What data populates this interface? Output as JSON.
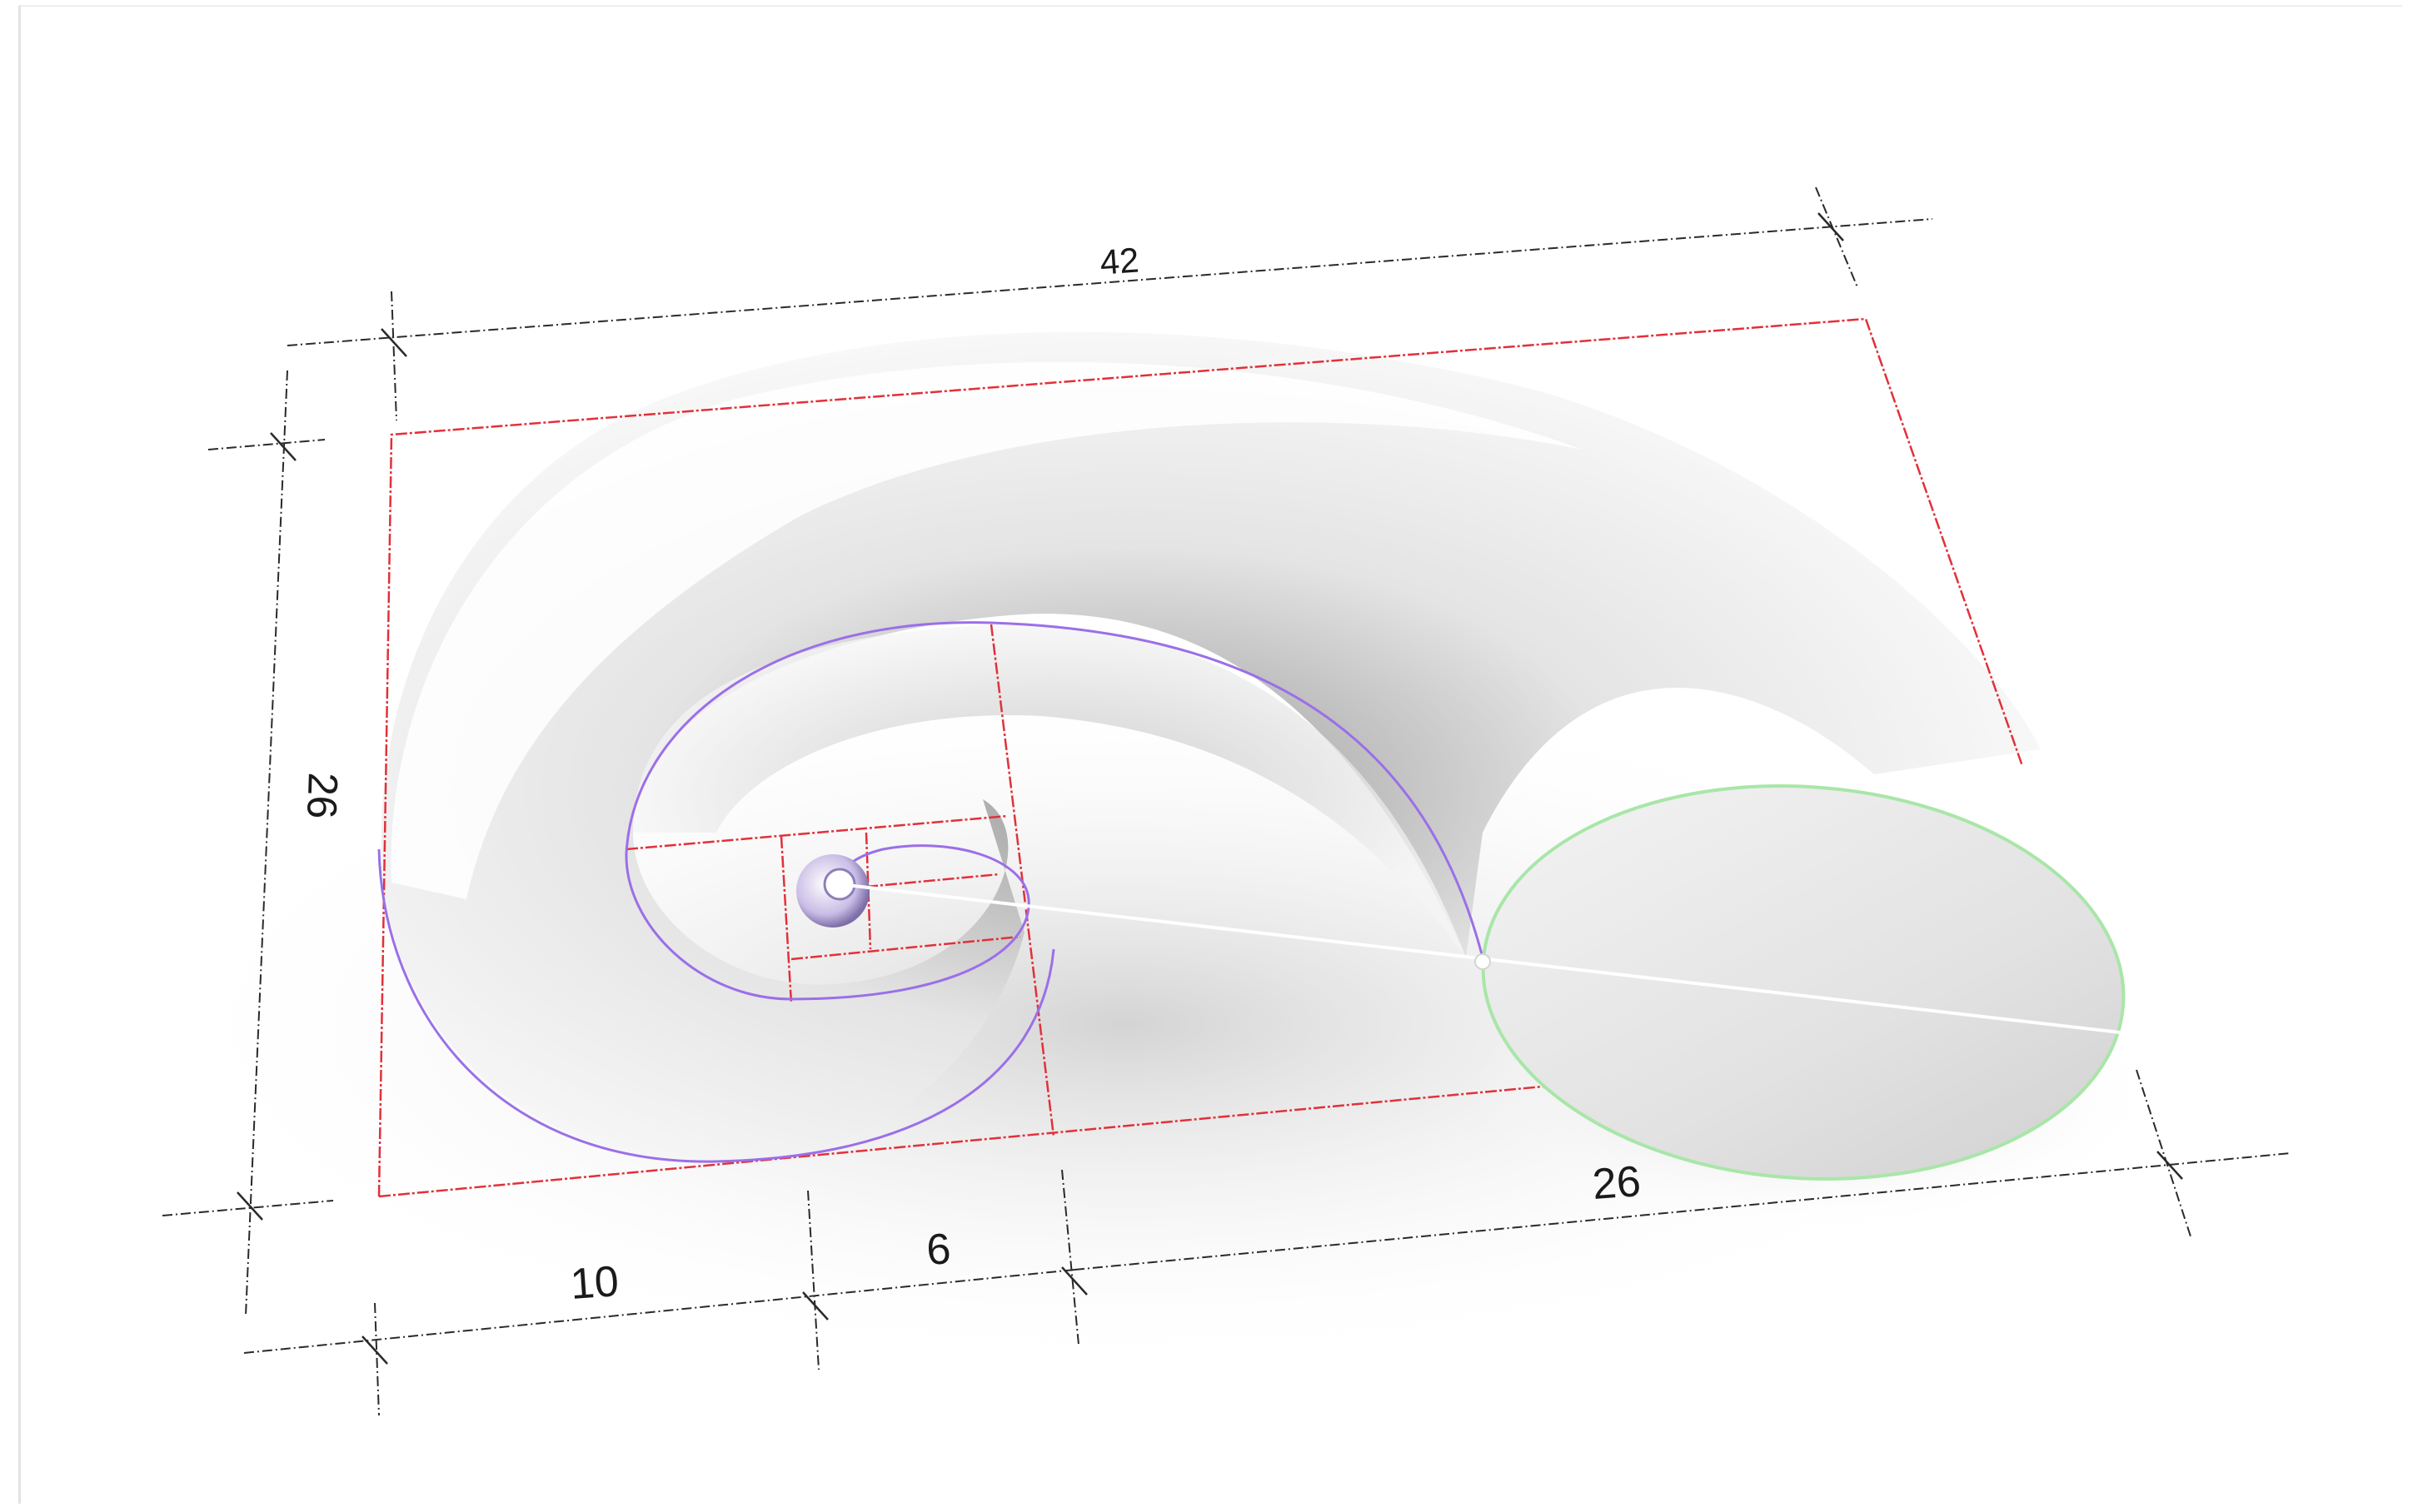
{
  "diagram": {
    "dimensions": {
      "overall_length": "42",
      "height": "26",
      "segment_a": "10",
      "segment_b": "6",
      "segment_c": "26"
    },
    "colors": {
      "dimension_line": "#2a2a2a",
      "guide_rectangle": "#e2303a",
      "spiral_curve": "#9b6fe8",
      "section_circle": "#a8e6a8",
      "axis_line": "#ffffff",
      "shell_surface": "#ffffff"
    }
  }
}
